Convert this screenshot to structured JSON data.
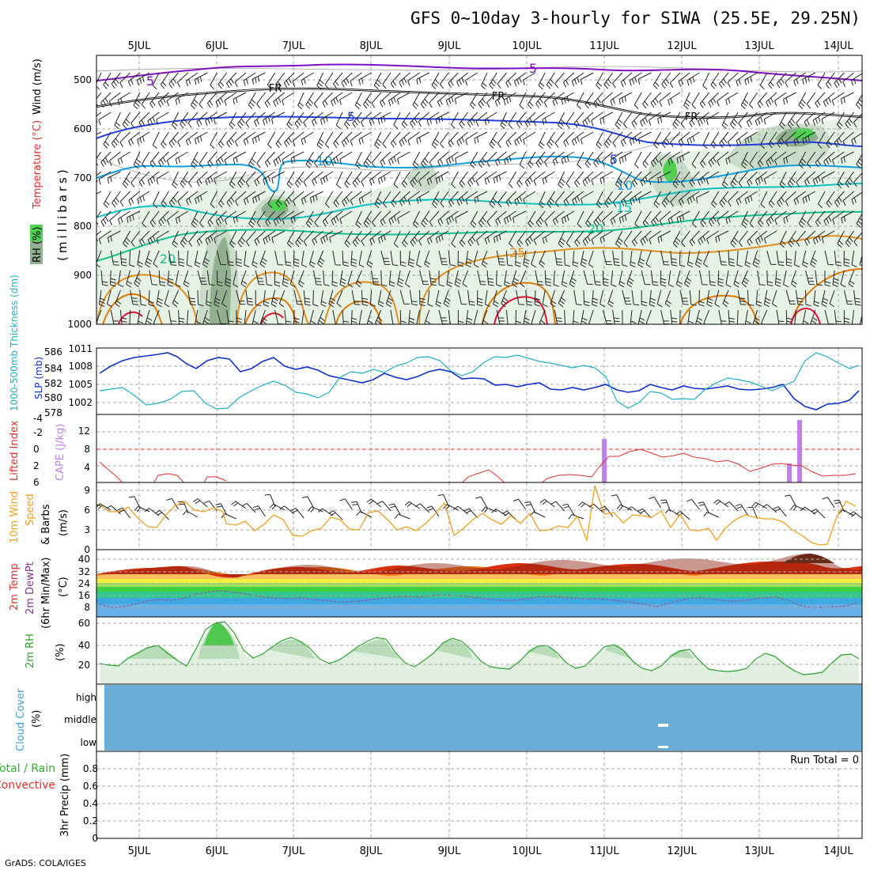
{
  "title": "GFS 0~10day 3-hourly for SIWA (25.5E, 29.25N)",
  "footer": "GrADS: COLA/IGES",
  "dates": [
    "5JUL",
    "6JUL",
    "7JUL",
    "8JUL",
    "9JUL",
    "10JUL",
    "11JUL",
    "12JUL",
    "13JUL",
    "14JUL"
  ],
  "colors": {
    "temp_warm": "#e07800",
    "temp_hot": "#e01030",
    "temp_mid": "#10c0a0",
    "temp_cool": "#10a0e0",
    "temp_cold": "#2040e0",
    "temp_vcold": "#8010c0",
    "freezing": "#000000",
    "rh_green": "#40d040",
    "thickness": "#20b0c0",
    "slp": "#1030d0",
    "cape": "#c080f0",
    "lifted": "#e03030",
    "wind10m": "#f0a020",
    "rh2m": "#40b040",
    "cloud": "#6aaed8"
  },
  "panels": {
    "upper_air": {
      "ylabel_rh": "RH (%)",
      "ylabel_temp": "Temperature (°C)",
      "ylabel_wind": "Wind (m/s)",
      "ylabel_mb": "(millibars)",
      "y_ticks": [
        "500",
        "600",
        "700",
        "800",
        "900",
        "1000"
      ],
      "contour_labels": {
        "five_a": "5",
        "five_b": "5",
        "five_c": "5",
        "five_d": "5",
        "fr_a": "FR",
        "fr_b": "FR",
        "fr_c": "FR",
        "ten_a": "10",
        "ten_b": "10",
        "fifteen": "15",
        "twenty_a": "20",
        "twenty_b": "20",
        "twentyfive": "25"
      }
    },
    "slp": {
      "ylabel_thk": "1000-500mb Thickness (dm)",
      "ylabel_slp": "SLP (mb)",
      "left_ticks": [
        "586",
        "584",
        "582",
        "580",
        "578"
      ],
      "right_ticks": [
        "1011",
        "1008",
        "1005",
        "1002"
      ]
    },
    "cape": {
      "ylabel_li": "Lifted Index",
      "ylabel_cape": "CAPE (J/kg)",
      "left_ticks": [
        "-4",
        "-2",
        "0",
        "2",
        "4",
        "6"
      ],
      "right_ticks": [
        "12",
        "8",
        "4"
      ]
    },
    "wind10m": {
      "ylabel_a": "10m Wind",
      "ylabel_b": "Speed",
      "ylabel_c": "& Barbs",
      "unit": "(m/s)",
      "y_ticks": [
        "9",
        "6",
        "3",
        "0"
      ]
    },
    "temp2m": {
      "ylabel_a": "2m Temp",
      "ylabel_b": "2m DewPt",
      "ylabel_c": "(6hr Min/Max)",
      "unit": "(°C)",
      "y_ticks": [
        "40",
        "32",
        "24",
        "16",
        "8"
      ]
    },
    "rh2m": {
      "ylabel": "2m RH",
      "unit": "(%)",
      "y_ticks": [
        "60",
        "40",
        "20"
      ]
    },
    "cloud": {
      "ylabel_a": "Cloud Cover",
      "ylabel_b": "(%)",
      "y_ticks": [
        "high",
        "middle",
        "low"
      ]
    },
    "precip": {
      "ylabel_a": "Total / Rain",
      "ylabel_b": "Convective",
      "ylabel_c": "3hr Precip (mm)",
      "y_ticks": [
        "0.8",
        "0.6",
        "0.4",
        "0.2",
        "0"
      ],
      "run_total": "Run Total = 0"
    }
  },
  "chart_data": [
    {
      "type": "line",
      "name": "slp_thickness",
      "x": [
        "5JUL",
        "6JUL",
        "7JUL",
        "8JUL",
        "9JUL",
        "10JUL",
        "11JUL",
        "12JUL",
        "13JUL",
        "14JUL"
      ],
      "series": [
        {
          "name": "SLP (mb)",
          "values": [
            1008.5,
            1010.2,
            1008.3,
            1006.0,
            1005.5,
            1004.5,
            1004.0,
            1003.8,
            1003.5,
            1001.0
          ]
        },
        {
          "name": "1000-500mb Thickness (dm)",
          "values": [
            580.5,
            580.0,
            581.0,
            582.5,
            583.5,
            584.2,
            582.0,
            580.8,
            582.0,
            584.5
          ]
        }
      ],
      "ylim_slp": [
        1000,
        1011
      ],
      "ylim_thk": [
        578,
        586
      ]
    },
    {
      "type": "bar",
      "name": "cape",
      "x": [
        "11JUL",
        "13.4JUL",
        "13.5JUL"
      ],
      "values": [
        10.5,
        4.0,
        15.5
      ],
      "ylim": [
        0,
        16
      ]
    },
    {
      "type": "line",
      "name": "lifted_index",
      "x": [
        "5JUL",
        "5.8JUL",
        "6JUL",
        "9.5JUL",
        "10.5JUL",
        "11JUL",
        "11.4JUL",
        "12JUL",
        "12.5JUL",
        "13JUL",
        "13.5JUL",
        "14JUL"
      ],
      "values": [
        4.0,
        3.8,
        3.5,
        3.2,
        3.5,
        0.5,
        0.0,
        0.5,
        1.2,
        3.5,
        2.5,
        3.4
      ],
      "ylim": [
        -6,
        6
      ]
    },
    {
      "type": "line",
      "name": "wind_speed_10m",
      "x": [
        "5JUL",
        "6JUL",
        "7JUL",
        "8JUL",
        "9JUL",
        "10JUL",
        "11JUL",
        "12JUL",
        "13JUL",
        "14JUL"
      ],
      "values": [
        5.5,
        4.5,
        4.0,
        4.5,
        5.0,
        4.2,
        5.0,
        4.5,
        4.0,
        3.0
      ],
      "ylim": [
        0,
        10
      ]
    },
    {
      "type": "line",
      "name": "temp_2m",
      "x": [
        "5JUL",
        "6JUL",
        "7JUL",
        "8JUL",
        "9JUL",
        "10JUL",
        "11JUL",
        "12JUL",
        "13JUL",
        "14JUL"
      ],
      "series": [
        {
          "name": "2m Temp max",
          "values": [
            34,
            36,
            36,
            36,
            37,
            38,
            37,
            38,
            38,
            40
          ]
        },
        {
          "name": "2m Temp min",
          "values": [
            27,
            25,
            26,
            27,
            28,
            28,
            28,
            28,
            28,
            30
          ]
        },
        {
          "name": "2m DewPt",
          "values": [
            9,
            15,
            13,
            12,
            14,
            12,
            11,
            10,
            11,
            7
          ]
        }
      ],
      "ylim": [
        0,
        45
      ]
    },
    {
      "type": "area",
      "name": "rh_2m",
      "x": [
        "5JUL",
        "6JUL",
        "7JUL",
        "8JUL",
        "9JUL",
        "10JUL",
        "11JUL",
        "12JUL",
        "13JUL",
        "14JUL"
      ],
      "values": [
        39,
        63,
        44,
        46,
        45,
        40,
        41,
        34,
        32,
        30
      ],
      "ylim": [
        0,
        70
      ]
    },
    {
      "type": "bar",
      "name": "precip_3hr",
      "x": [
        "5JUL",
        "14JUL"
      ],
      "values": [
        0,
        0
      ],
      "ylim": [
        0,
        1.0
      ]
    }
  ]
}
